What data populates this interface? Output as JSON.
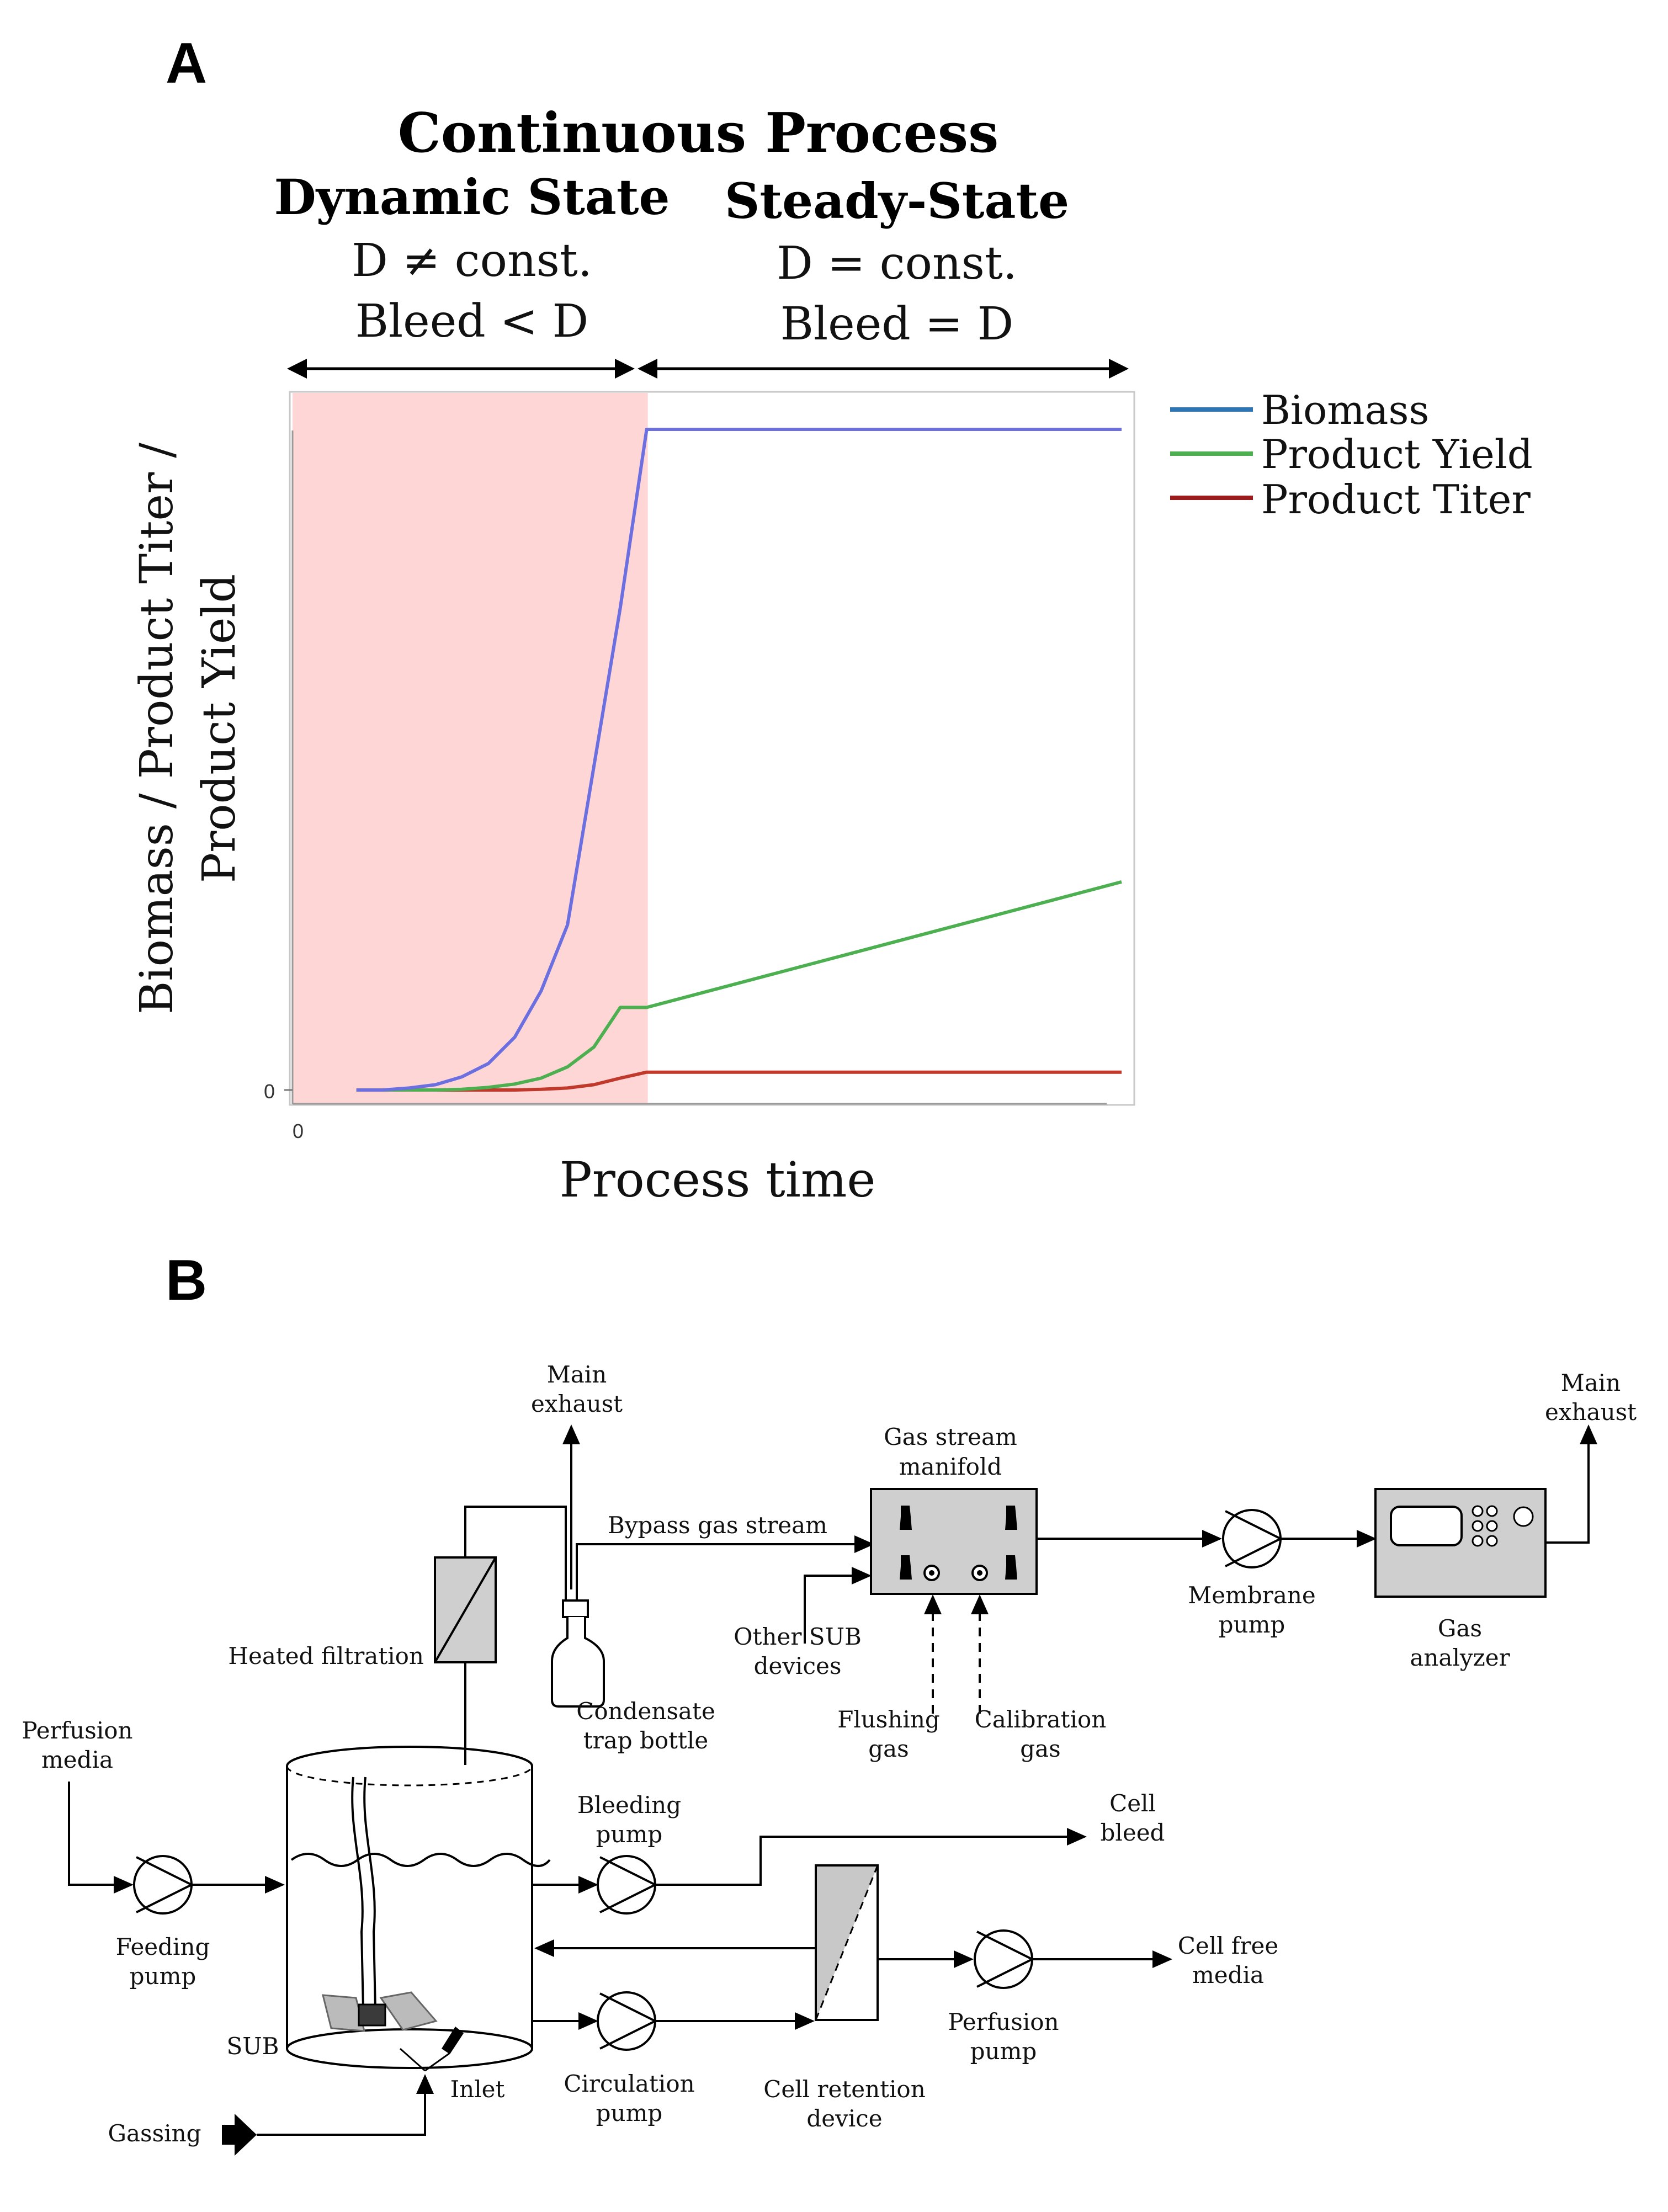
{
  "panel_a": {
    "letter": "A",
    "title": "Continuous Process",
    "dynamic": {
      "title": "Dynamic State",
      "line1": "D ≠ const.",
      "line2": "Bleed < D"
    },
    "steady": {
      "title": "Steady-State",
      "line1": "D = const.",
      "line2": "Bleed = D"
    }
  },
  "chart_data": {
    "type": "line",
    "title": "Continuous Process",
    "xlabel": "Process time",
    "ylabel_line1": "Biomass / Product Titer /",
    "ylabel_line2": "Product Yield",
    "x_tick": "0",
    "y_tick": "0",
    "xlim": [
      0,
      30
    ],
    "ylim": [
      0,
      100
    ],
    "shaded_region": {
      "x_start": 0,
      "x_end": 12,
      "color": "#ffd6d6",
      "label": "Dynamic State"
    },
    "x": [
      1,
      2,
      3,
      4,
      5,
      6,
      7,
      8,
      9,
      10,
      11,
      12,
      30
    ],
    "series": [
      {
        "name": "Biomass",
        "color": "#6b6fe0",
        "legend_color": "#2e75b6",
        "values": [
          0,
          0,
          0.3,
          0.8,
          2,
          4,
          8,
          15,
          25,
          49,
          73,
          100,
          100
        ]
      },
      {
        "name": "Product Yield",
        "color": "#4caf50",
        "legend_color": "#4caf50",
        "values": [
          0,
          0,
          0,
          0,
          0.1,
          0.4,
          0.9,
          1.8,
          3.5,
          6.5,
          12.5,
          12.5,
          31.5
        ]
      },
      {
        "name": "Product Titer",
        "color": "#c0392b",
        "legend_color": "#9b1c1c",
        "values": [
          0,
          0,
          0,
          0,
          0,
          0,
          0,
          0.1,
          0.3,
          0.8,
          1.8,
          2.7,
          2.7
        ]
      }
    ]
  },
  "panel_b": {
    "letter": "B",
    "labels": {
      "main_exhaust_left_1": "Main",
      "main_exhaust_left_2": "exhaust",
      "main_exhaust_right_1": "Main",
      "main_exhaust_right_2": "exhaust",
      "gas_manifold_1": "Gas stream",
      "gas_manifold_2": "manifold",
      "bypass": "Bypass gas stream",
      "heated_filtration": "Heated filtration",
      "other_sub_1": "Other SUB",
      "other_sub_2": "devices",
      "membrane_pump_1": "Membrane",
      "membrane_pump_2": "pump",
      "gas_analyzer_1": "Gas",
      "gas_analyzer_2": "analyzer",
      "condensate_1": "Condensate",
      "condensate_2": "trap bottle",
      "flushing_1": "Flushing",
      "flushing_2": "gas",
      "calibration_1": "Calibration",
      "calibration_2": "gas",
      "perfusion_media_1": "Perfusion",
      "perfusion_media_2": "media",
      "bleeding_pump_1": "Bleeding",
      "bleeding_pump_2": "pump",
      "cell_bleed_1": "Cell",
      "cell_bleed_2": "bleed",
      "feeding_pump_1": "Feeding",
      "feeding_pump_2": "pump",
      "cell_free_1": "Cell free",
      "cell_free_2": "media",
      "perfusion_pump_1": "Perfusion",
      "perfusion_pump_2": "pump",
      "sub": "SUB",
      "circulation_1": "Circulation",
      "circulation_2": "pump",
      "retention_1": "Cell retention",
      "retention_2": "device",
      "inlet": "Inlet",
      "gassing": "Gassing"
    }
  }
}
